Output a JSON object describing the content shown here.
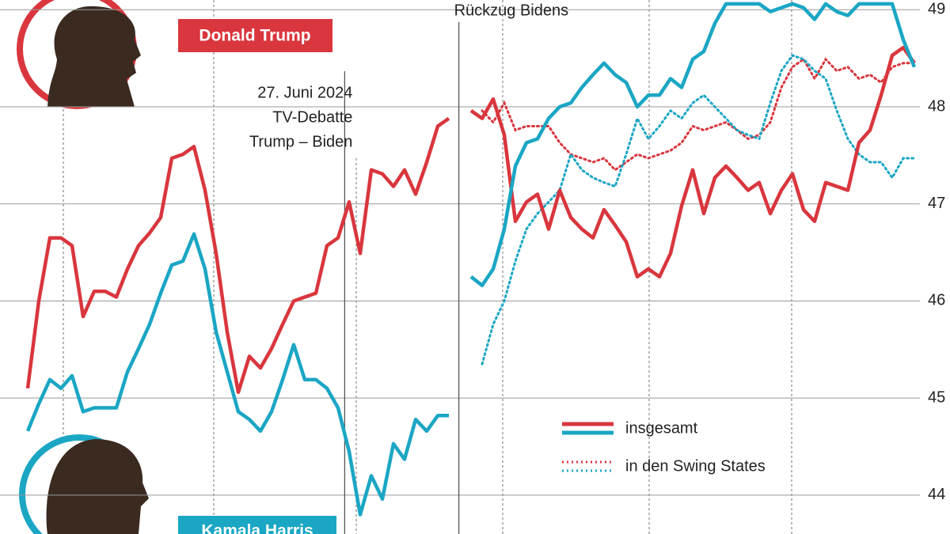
{
  "chart_data": {
    "type": "line",
    "annotations": [
      {
        "lines": [
          "Rückzug Bidens"
        ],
        "index": 38.9
      },
      {
        "lines": [
          "27. Juni 2024",
          "TV-Debatte",
          "Trump – Biden"
        ],
        "index": 28.6
      }
    ],
    "legend_labels": [
      "insgesamt",
      "in den Swing States"
    ],
    "series": [
      {
        "name": "Donald Trump",
        "color": "#d9363e",
        "values": [
          45.1,
          46.0,
          46.65,
          46.65,
          46.57,
          45.84,
          46.1,
          46.1,
          46.04,
          46.33,
          46.57,
          46.7,
          46.86,
          47.47,
          47.51,
          47.59,
          47.14,
          46.49,
          45.68,
          45.06,
          45.43,
          45.31,
          45.51,
          45.76,
          46.0,
          46.04,
          46.08,
          46.57,
          46.65,
          47.02,
          46.49,
          47.35,
          47.31,
          47.18,
          47.35,
          47.1,
          47.43,
          47.8,
          47.88,
          null,
          47.96,
          47.88,
          48.08,
          47.71,
          46.82,
          47.02,
          47.1,
          46.74,
          47.14,
          46.86,
          46.74,
          46.65,
          46.94,
          46.78,
          46.61,
          46.25,
          46.33,
          46.25,
          46.49,
          46.98,
          47.35,
          46.9,
          47.27,
          47.39,
          47.27,
          47.14,
          47.22,
          46.9,
          47.14,
          47.31,
          46.94,
          46.82,
          47.22,
          47.18,
          47.14,
          47.63,
          47.76,
          48.12,
          48.53,
          48.61,
          48.45
        ],
        "swing_values": [
          null,
          null,
          null,
          null,
          null,
          null,
          null,
          null,
          null,
          null,
          null,
          null,
          null,
          null,
          null,
          null,
          null,
          null,
          null,
          null,
          null,
          null,
          null,
          null,
          null,
          null,
          null,
          null,
          null,
          null,
          null,
          null,
          null,
          null,
          null,
          null,
          null,
          null,
          null,
          null,
          null,
          47.96,
          47.84,
          48.04,
          47.76,
          47.8,
          47.8,
          47.8,
          47.63,
          47.51,
          47.47,
          47.43,
          47.47,
          47.35,
          47.43,
          47.51,
          47.47,
          47.51,
          47.55,
          47.63,
          47.8,
          47.76,
          47.8,
          47.84,
          47.76,
          47.67,
          47.71,
          47.84,
          48.2,
          48.41,
          48.49,
          48.29,
          48.49,
          48.37,
          48.41,
          48.29,
          48.33,
          48.25,
          48.41,
          48.45,
          48.45
        ]
      },
      {
        "name": "Kamala Harris",
        "color": "#1ba6c4",
        "values": [
          44.66,
          44.94,
          45.19,
          45.1,
          45.23,
          44.86,
          44.9,
          44.9,
          44.9,
          45.27,
          45.51,
          45.76,
          46.08,
          46.37,
          46.41,
          46.69,
          46.33,
          45.68,
          45.27,
          44.86,
          44.78,
          44.66,
          44.86,
          45.19,
          45.55,
          45.19,
          45.19,
          45.1,
          44.9,
          44.45,
          43.8,
          44.2,
          43.96,
          44.53,
          44.37,
          44.78,
          44.66,
          44.82,
          44.82,
          null,
          46.25,
          46.16,
          46.33,
          46.74,
          47.39,
          47.63,
          47.67,
          47.88,
          48.0,
          48.04,
          48.2,
          48.33,
          48.45,
          48.33,
          48.25,
          48.0,
          48.12,
          48.12,
          48.29,
          48.2,
          48.49,
          48.57,
          48.86,
          49.06,
          49.06,
          49.06,
          49.06,
          48.98,
          49.02,
          49.06,
          49.02,
          48.9,
          49.06,
          48.98,
          48.94,
          49.06,
          49.06,
          49.06,
          49.06,
          48.69,
          48.41
        ],
        "swing_values": [
          null,
          null,
          null,
          null,
          null,
          null,
          null,
          null,
          null,
          null,
          null,
          null,
          null,
          null,
          null,
          null,
          null,
          null,
          null,
          null,
          null,
          null,
          null,
          null,
          null,
          null,
          null,
          null,
          null,
          null,
          null,
          null,
          null,
          null,
          null,
          null,
          null,
          null,
          null,
          null,
          null,
          45.35,
          45.76,
          46.0,
          46.41,
          46.74,
          46.9,
          47.02,
          47.14,
          47.51,
          47.35,
          47.27,
          47.22,
          47.18,
          47.51,
          47.88,
          47.67,
          47.8,
          47.96,
          47.88,
          48.04,
          48.12,
          48.0,
          47.88,
          47.76,
          47.71,
          47.67,
          48.04,
          48.37,
          48.53,
          48.49,
          48.37,
          48.29,
          47.96,
          47.67,
          47.51,
          47.43,
          47.43,
          47.27,
          47.47,
          47.47
        ]
      }
    ],
    "ylim": [
      43.6,
      49.1
    ],
    "yticks": [
      44,
      45,
      46,
      47,
      48,
      49
    ],
    "grid": true
  }
}
